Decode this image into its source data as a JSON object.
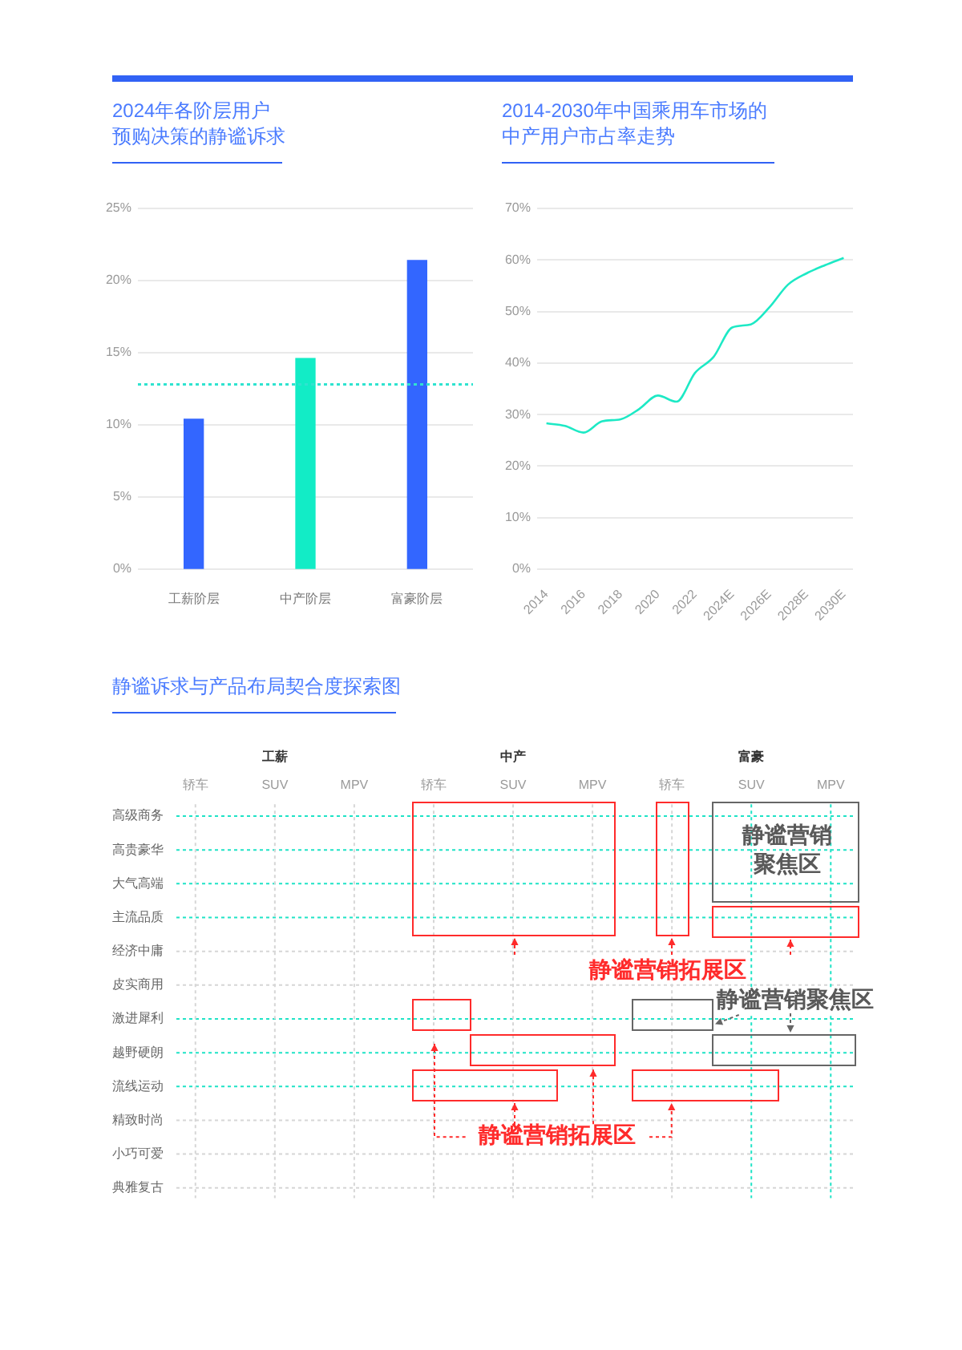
{
  "chart_data": [
    {
      "type": "bar",
      "title": "2024年各阶层用户预购决策的静谧诉求",
      "categories": [
        "工薪阶层",
        "中产阶层",
        "富豪阶层"
      ],
      "values": [
        10.4,
        14.6,
        21.4
      ],
      "colors": [
        "#3366ff",
        "#12ecc6",
        "#3366ff"
      ],
      "ylim": [
        0,
        25
      ],
      "yticks": [
        {
          "value": 0,
          "label": "0%"
        },
        {
          "value": 5,
          "label": "5%"
        },
        {
          "value": 10,
          "label": "10%"
        },
        {
          "value": 15,
          "label": "15%"
        },
        {
          "value": 20,
          "label": "20%"
        },
        {
          "value": 25,
          "label": "25%"
        }
      ],
      "grid": "y",
      "ref_lines": [
        {
          "axis": "y",
          "value": 12.8,
          "color": "#2fe3d0",
          "line_style": "dotted"
        }
      ]
    },
    {
      "type": "line",
      "title": "2014-2030年中国乘用车市场的中产用户市占率走势",
      "categories": [
        "2014",
        null,
        "2016",
        null,
        "2018",
        null,
        "2020",
        null,
        "2022",
        null,
        "2024E",
        null,
        "2026E",
        null,
        "2028E",
        null,
        "2030E"
      ],
      "series": [
        {
          "color": "#1de9c5",
          "values": [
            28.3,
            27.8,
            26.5,
            28.7,
            29.1,
            31.1,
            33.7,
            32.5,
            38.1,
            41.2,
            46.9,
            47.5,
            50.8,
            55.2,
            57.4,
            59.0,
            60.4
          ]
        }
      ],
      "ylim": [
        0,
        70
      ],
      "yticks": [
        {
          "value": 0,
          "label": "0%"
        },
        {
          "value": 10,
          "label": "10%"
        },
        {
          "value": 20,
          "label": "20%"
        },
        {
          "value": 30,
          "label": "30%"
        },
        {
          "value": 40,
          "label": "40%"
        },
        {
          "value": 50,
          "label": "50%"
        },
        {
          "value": 60,
          "label": "60%"
        },
        {
          "value": 70,
          "label": "70%"
        }
      ],
      "grid": "y",
      "marker": "none"
    },
    {
      "type": "other",
      "title": "静谧诉求与产品布局契合度探索图",
      "categories": [
        "轿车",
        "SUV",
        "MPV",
        "轿车",
        "SUV",
        "MPV",
        "轿车",
        "SUV",
        "MPV"
      ],
      "y_categories": [
        "高级商务",
        "高贵豪华",
        "大气高端",
        "主流品质",
        "经济中庸",
        "皮实商用",
        "激进犀利",
        "越野硬朗",
        "流线运动",
        "精致时尚",
        "小巧可爱",
        "典雅复古"
      ],
      "annotations": [
        "工薪",
        "中产",
        "富豪",
        "静谧营销聚焦区",
        "静谧营销拓展区",
        "静谧营销聚焦区",
        "静谧营销拓展区"
      ]
    }
  ]
}
